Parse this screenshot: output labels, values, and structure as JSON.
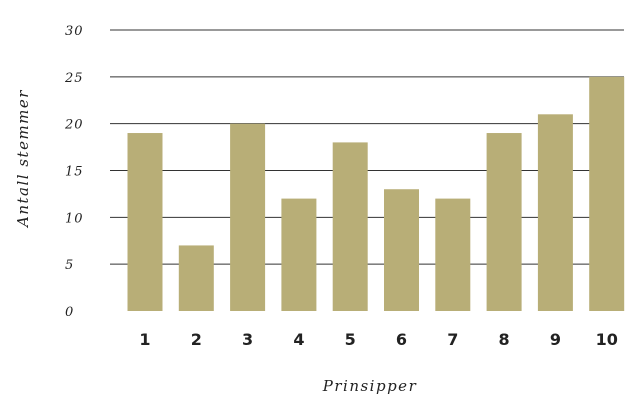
{
  "chart_data": {
    "type": "bar",
    "categories": [
      "1",
      "2",
      "3",
      "4",
      "5",
      "6",
      "7",
      "8",
      "9",
      "10"
    ],
    "values": [
      19,
      7,
      20,
      12,
      18,
      13,
      12,
      19,
      21,
      25
    ],
    "xlabel": "Prinsipper",
    "ylabel": "Antall stemmer",
    "ylim": [
      0,
      30
    ],
    "yticks": [
      "0",
      "5",
      "10",
      "15",
      "20",
      "25",
      "30"
    ],
    "grid": true,
    "bar_color": "#b8ae77",
    "grid_color": "#333333"
  }
}
